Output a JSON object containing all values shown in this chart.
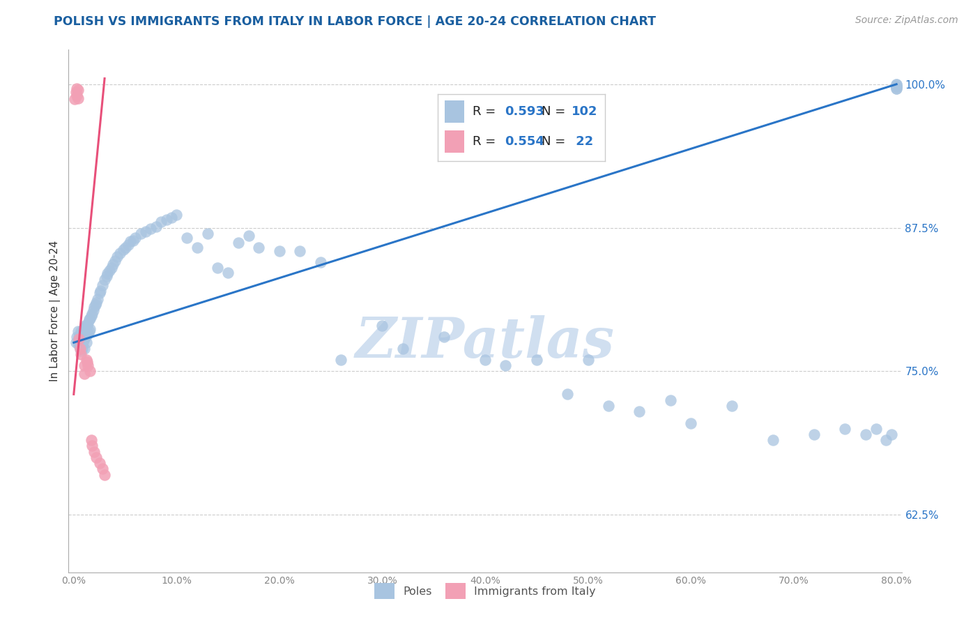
{
  "title": "POLISH VS IMMIGRANTS FROM ITALY IN LABOR FORCE | AGE 20-24 CORRELATION CHART",
  "source_text": "Source: ZipAtlas.com",
  "ylabel": "In Labor Force | Age 20-24",
  "xlim": [
    -0.005,
    0.805
  ],
  "ylim": [
    0.575,
    1.03
  ],
  "xticks": [
    0.0,
    0.1,
    0.2,
    0.3,
    0.4,
    0.5,
    0.6,
    0.7,
    0.8
  ],
  "xticklabels": [
    "0.0%",
    "",
    "",
    "",
    "",
    "",
    "",
    "",
    "80.0%"
  ],
  "yticks": [
    0.625,
    0.75,
    0.875,
    1.0
  ],
  "yticklabels": [
    "62.5%",
    "75.0%",
    "87.5%",
    "100.0%"
  ],
  "blue_color": "#a8c4e0",
  "pink_color": "#f2a0b5",
  "blue_line_color": "#2a75c7",
  "pink_line_color": "#e8507a",
  "title_color": "#1a5fa0",
  "source_color": "#999999",
  "watermark_color": "#d0dff0",
  "R_blue": 0.593,
  "N_blue": 102,
  "R_pink": 0.554,
  "N_pink": 22,
  "legend_label_blue": "Poles",
  "legend_label_pink": "Immigrants from Italy",
  "blue_scatter_x": [
    0.002,
    0.003,
    0.004,
    0.004,
    0.005,
    0.005,
    0.006,
    0.006,
    0.007,
    0.007,
    0.007,
    0.008,
    0.008,
    0.009,
    0.009,
    0.01,
    0.01,
    0.01,
    0.011,
    0.011,
    0.012,
    0.012,
    0.013,
    0.013,
    0.014,
    0.014,
    0.015,
    0.015,
    0.016,
    0.016,
    0.017,
    0.018,
    0.019,
    0.02,
    0.021,
    0.022,
    0.023,
    0.025,
    0.026,
    0.028,
    0.03,
    0.032,
    0.033,
    0.035,
    0.037,
    0.038,
    0.04,
    0.042,
    0.045,
    0.048,
    0.05,
    0.053,
    0.055,
    0.058,
    0.06,
    0.065,
    0.07,
    0.075,
    0.08,
    0.085,
    0.09,
    0.095,
    0.1,
    0.11,
    0.12,
    0.13,
    0.14,
    0.15,
    0.16,
    0.17,
    0.18,
    0.2,
    0.22,
    0.24,
    0.26,
    0.3,
    0.32,
    0.36,
    0.4,
    0.42,
    0.45,
    0.48,
    0.5,
    0.52,
    0.55,
    0.58,
    0.6,
    0.64,
    0.68,
    0.72,
    0.75,
    0.77,
    0.78,
    0.79,
    0.795,
    0.8,
    0.8,
    0.8,
    0.8,
    0.8,
    0.8,
    0.8
  ],
  "blue_scatter_y": [
    0.775,
    0.78,
    0.785,
    0.775,
    0.78,
    0.773,
    0.782,
    0.77,
    0.785,
    0.775,
    0.768,
    0.783,
    0.77,
    0.785,
    0.775,
    0.788,
    0.778,
    0.77,
    0.79,
    0.78,
    0.785,
    0.775,
    0.79,
    0.782,
    0.792,
    0.783,
    0.795,
    0.785,
    0.796,
    0.787,
    0.798,
    0.8,
    0.803,
    0.806,
    0.808,
    0.81,
    0.813,
    0.818,
    0.82,
    0.825,
    0.83,
    0.833,
    0.835,
    0.838,
    0.84,
    0.843,
    0.846,
    0.85,
    0.853,
    0.856,
    0.858,
    0.86,
    0.863,
    0.864,
    0.866,
    0.87,
    0.872,
    0.874,
    0.876,
    0.88,
    0.882,
    0.884,
    0.886,
    0.866,
    0.858,
    0.87,
    0.84,
    0.836,
    0.862,
    0.868,
    0.858,
    0.855,
    0.855,
    0.845,
    0.76,
    0.79,
    0.77,
    0.78,
    0.76,
    0.755,
    0.76,
    0.73,
    0.76,
    0.72,
    0.715,
    0.725,
    0.705,
    0.72,
    0.69,
    0.695,
    0.7,
    0.695,
    0.7,
    0.69,
    0.695,
    1.0,
    0.998,
    0.996,
    0.998,
    0.996,
    0.998,
    1.0
  ],
  "pink_scatter_x": [
    0.001,
    0.002,
    0.003,
    0.003,
    0.004,
    0.004,
    0.005,
    0.006,
    0.007,
    0.01,
    0.01,
    0.012,
    0.013,
    0.014,
    0.016,
    0.017,
    0.018,
    0.02,
    0.022,
    0.025,
    0.028,
    0.03
  ],
  "pink_scatter_y": [
    0.987,
    0.993,
    0.996,
    0.99,
    0.995,
    0.988,
    0.778,
    0.77,
    0.765,
    0.755,
    0.748,
    0.76,
    0.758,
    0.755,
    0.75,
    0.69,
    0.685,
    0.68,
    0.675,
    0.67,
    0.665,
    0.66
  ],
  "blue_line_x0": 0.0,
  "blue_line_x1": 0.8,
  "blue_line_y0": 0.775,
  "blue_line_y1": 1.0,
  "pink_line_x0": 0.0,
  "pink_line_x1": 0.03,
  "pink_line_y0": 0.73,
  "pink_line_y1": 1.005
}
